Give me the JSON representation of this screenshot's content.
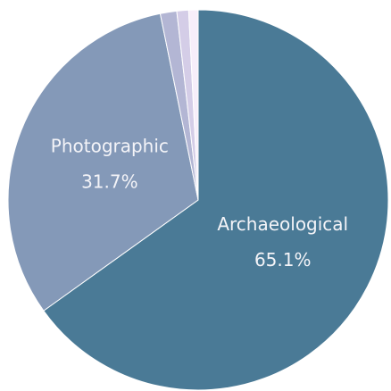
{
  "chart_data": {
    "type": "pie",
    "categories": [
      "Archaeological",
      "Photographic",
      null,
      null,
      null
    ],
    "values": [
      65.1,
      31.7,
      1.4,
      1.0,
      0.8
    ],
    "value_labels": [
      "65.1%",
      "31.7%",
      null,
      null,
      null
    ],
    "colors": [
      "#4a7a96",
      "#8499b8",
      "#b3b6d4",
      "#d4cde7",
      "#f7eefa"
    ]
  }
}
